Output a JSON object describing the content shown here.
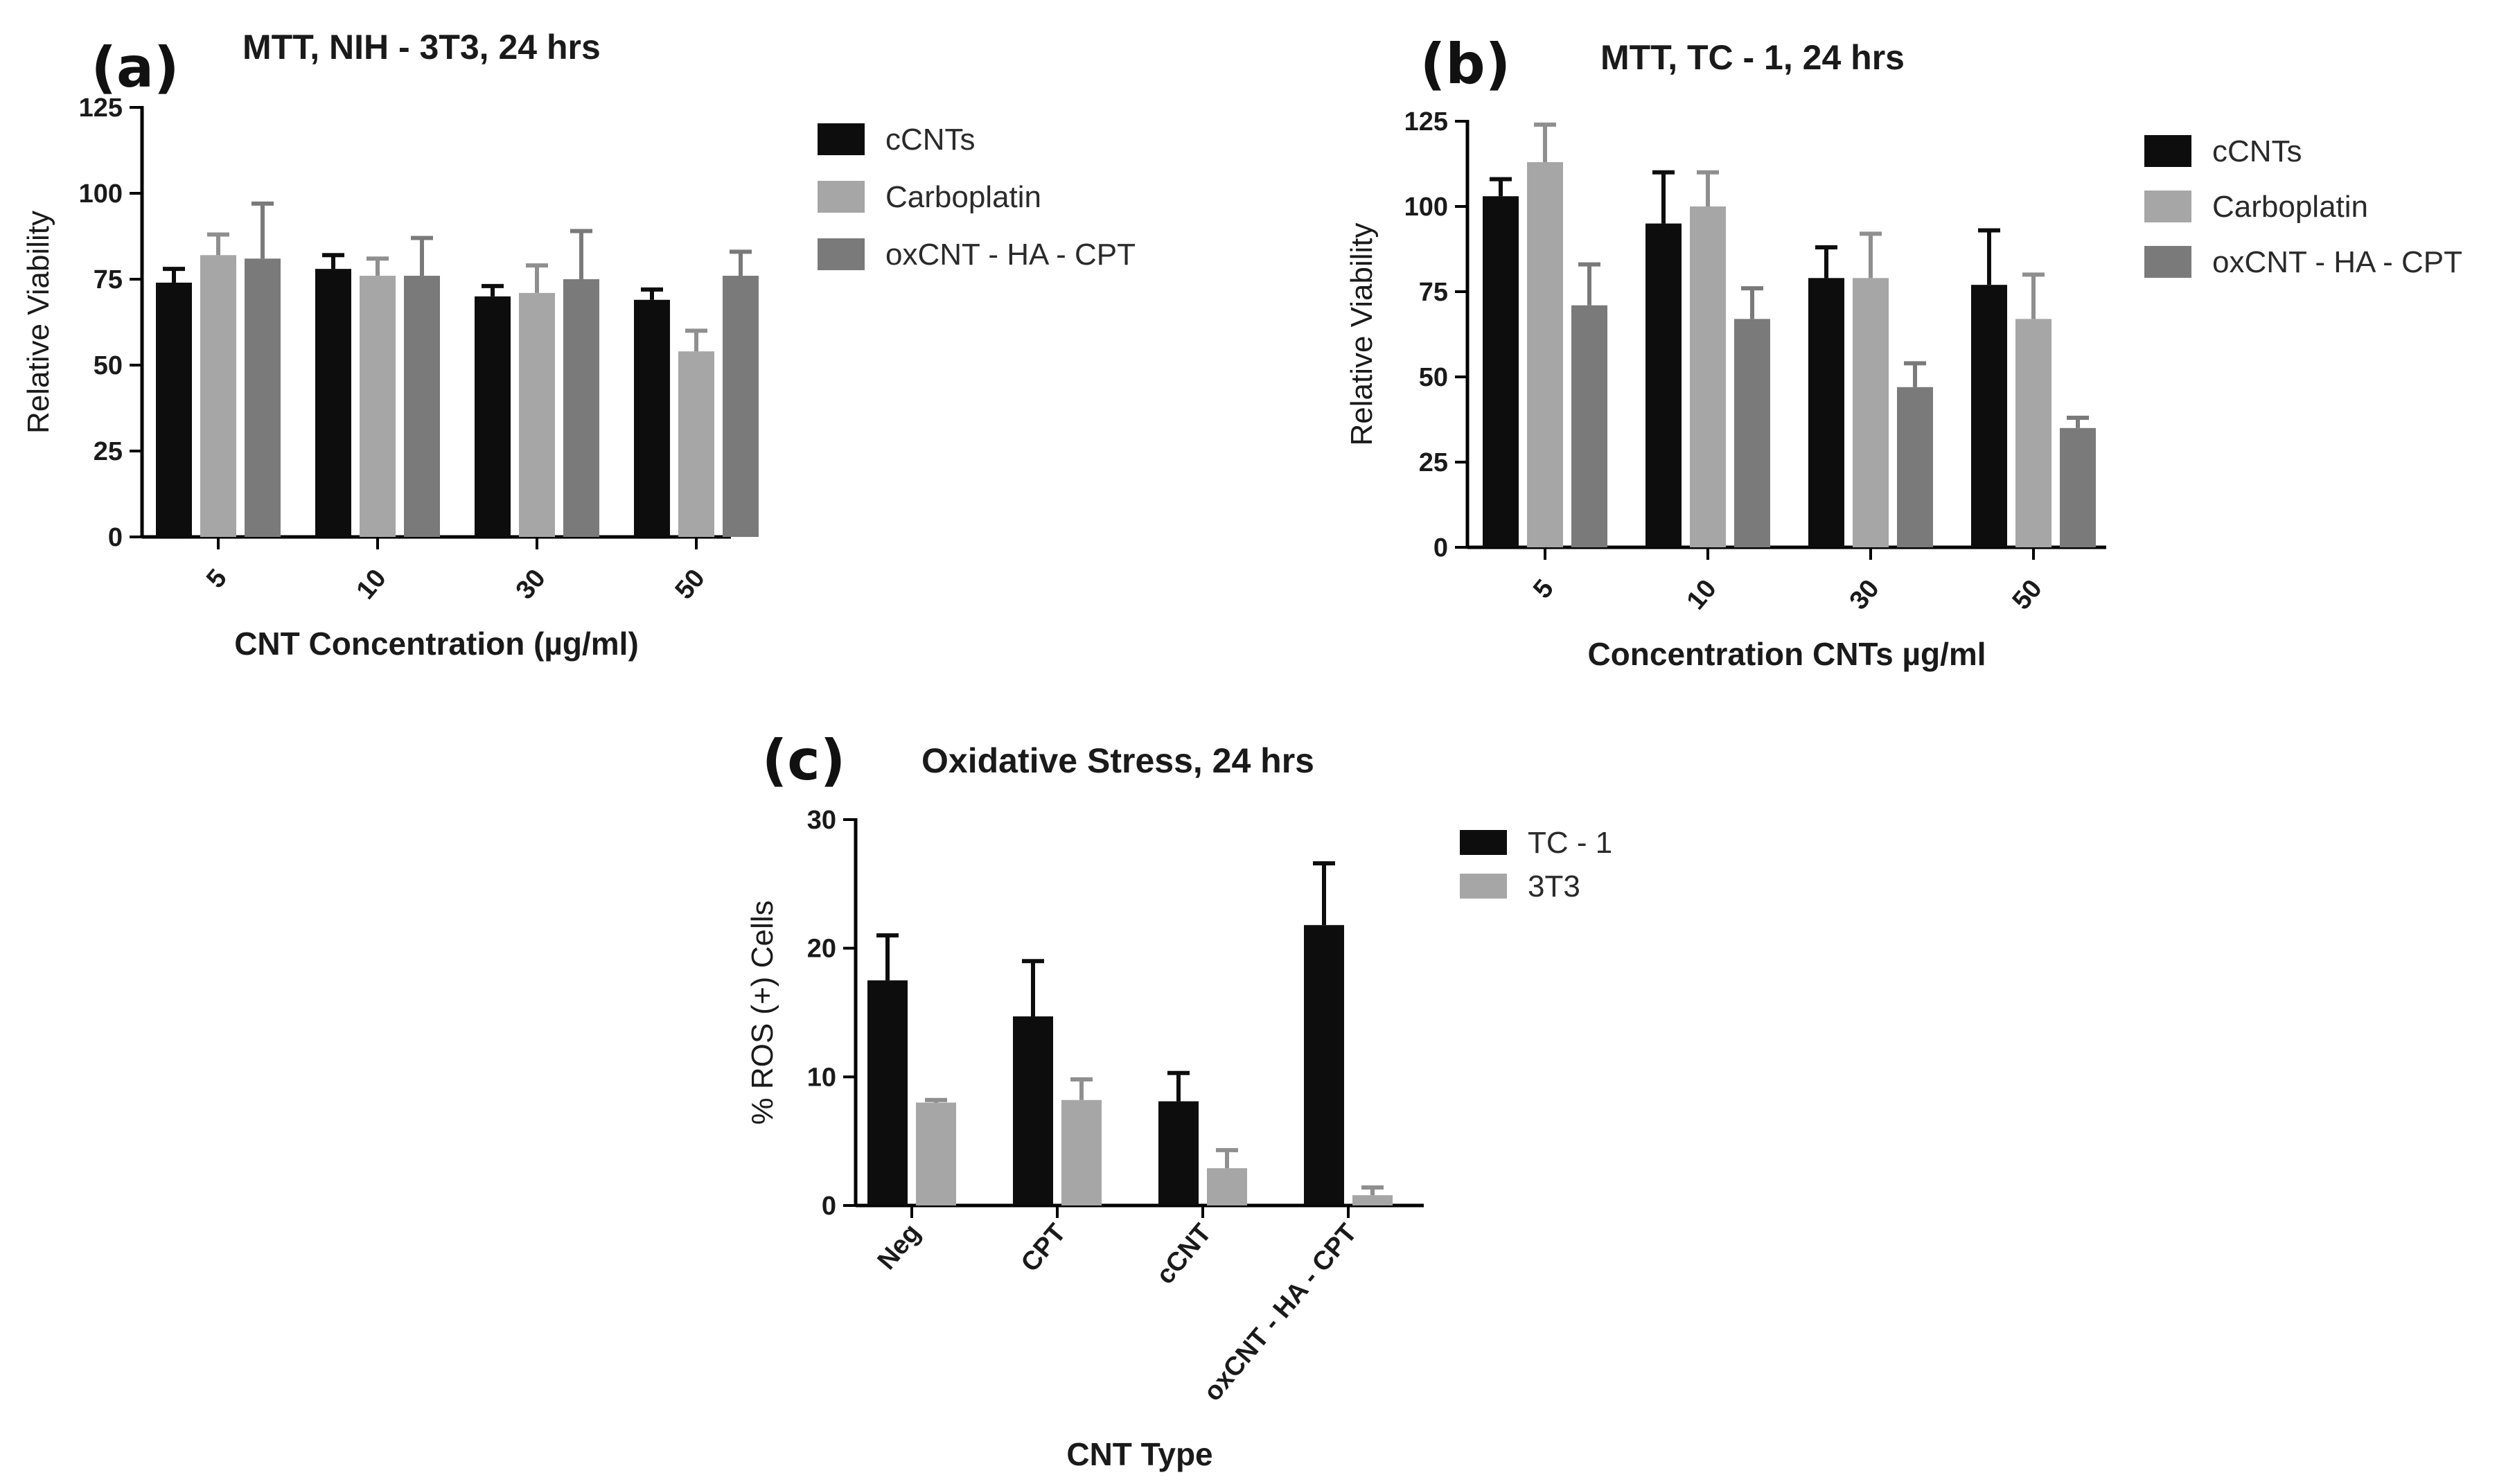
{
  "chart_data": [
    {
      "type": "bar",
      "panel_letter": "(a)",
      "title": "MTT, NIH - 3T3, 24 hrs",
      "xlabel": "CNT Concentration (µg/ml)",
      "ylabel": "Relative Viability",
      "ylim": [
        0,
        125
      ],
      "yticks": [
        0,
        25,
        50,
        75,
        100,
        125
      ],
      "categories": [
        "5",
        "10",
        "30",
        "50"
      ],
      "series": [
        {
          "name": "cCNTs",
          "color": "#0d0d0d",
          "values": [
            74,
            78,
            70,
            69
          ],
          "errors": [
            4,
            4,
            3,
            3
          ]
        },
        {
          "name": "Carboplatin",
          "color": "#a6a6a6",
          "values": [
            82,
            76,
            71,
            54
          ],
          "errors": [
            6,
            5,
            8,
            6
          ]
        },
        {
          "name": "oxCNT - HA - CPT",
          "color": "#7a7a7a",
          "values": [
            81,
            76,
            75,
            76
          ],
          "errors": [
            16,
            11,
            14,
            7
          ]
        }
      ],
      "grid": false,
      "legend": "right"
    },
    {
      "type": "bar",
      "panel_letter": "(b)",
      "title": "MTT, TC - 1, 24 hrs",
      "xlabel": "Concentration CNTs µg/ml",
      "ylabel": "Relative Viability",
      "ylim": [
        0,
        125
      ],
      "yticks": [
        0,
        25,
        50,
        75,
        100,
        125
      ],
      "categories": [
        "5",
        "10",
        "30",
        "50"
      ],
      "series": [
        {
          "name": "cCNTs",
          "color": "#0d0d0d",
          "values": [
            103,
            95,
            79,
            77
          ],
          "errors": [
            5,
            15,
            9,
            16
          ]
        },
        {
          "name": "Carboplatin",
          "color": "#a6a6a6",
          "values": [
            113,
            100,
            79,
            67
          ],
          "errors": [
            11,
            10,
            13,
            13
          ]
        },
        {
          "name": "oxCNT - HA - CPT",
          "color": "#7a7a7a",
          "values": [
            71,
            67,
            47,
            35
          ],
          "errors": [
            12,
            9,
            7,
            3
          ]
        }
      ],
      "grid": false,
      "legend": "right"
    },
    {
      "type": "bar",
      "panel_letter": "(c)",
      "title": "Oxidative Stress, 24 hrs",
      "xlabel": "CNT Type",
      "ylabel": "% ROS (+) Cells",
      "ylim": [
        0,
        30
      ],
      "yticks": [
        0,
        10,
        20,
        30
      ],
      "categories": [
        "Neg",
        "CPT",
        "cCNT",
        "oxCNT - HA - CPT"
      ],
      "series": [
        {
          "name": "TC - 1",
          "color": "#0d0d0d",
          "values": [
            17.5,
            14.7,
            8.1,
            21.8
          ],
          "errors": [
            3.5,
            4.3,
            2.2,
            4.8
          ]
        },
        {
          "name": "3T3",
          "color": "#a6a6a6",
          "values": [
            8.0,
            8.2,
            2.9,
            0.8
          ],
          "errors": [
            0.2,
            1.6,
            1.4,
            0.6
          ]
        }
      ],
      "grid": false,
      "legend": "right"
    }
  ]
}
